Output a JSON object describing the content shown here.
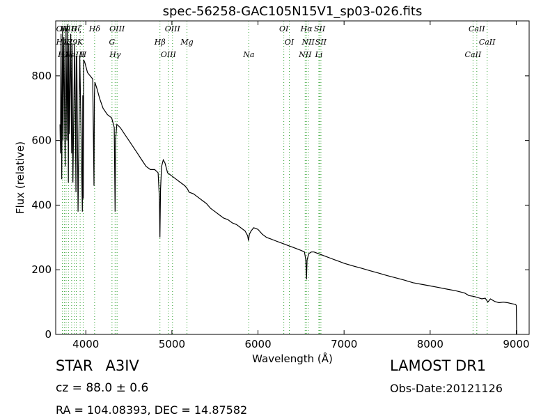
{
  "chart_data": {
    "type": "line",
    "title": "spec-56258-GAC105N15V1_sp03-026.fits",
    "xlabel": "Wavelength (Å)",
    "ylabel": "Flux (relative)",
    "xlim": [
      3650,
      9150
    ],
    "ylim": [
      0,
      970
    ],
    "x_ticks": [
      4000,
      5000,
      6000,
      7000,
      8000,
      9000
    ],
    "y_ticks": [
      0,
      200,
      400,
      600,
      800
    ],
    "grid": false,
    "line_color": "#000000",
    "marker_color": "#2ca02c",
    "series": [
      {
        "x": [
          3700,
          3705,
          3712,
          3720,
          3730,
          3735,
          3745,
          3760,
          3770,
          3780,
          3790,
          3797,
          3802,
          3810,
          3825,
          3835,
          3840,
          3850,
          3870,
          3885,
          3889,
          3895,
          3910,
          3930,
          3960,
          3965,
          3970,
          3975,
          3990,
          4020,
          4050,
          4080,
          4095,
          4100,
          4105,
          4130,
          4160,
          4200,
          4250,
          4300,
          4330,
          4340,
          4345,
          4360,
          4400,
          4450,
          4500,
          4550,
          4600,
          4650,
          4700,
          4750,
          4800,
          4840,
          4855,
          4861,
          4868,
          4880,
          4900,
          4920,
          4950,
          5000,
          5050,
          5100,
          5150,
          5180,
          5200,
          5250,
          5300,
          5350,
          5400,
          5450,
          5500,
          5550,
          5600,
          5650,
          5700,
          5750,
          5800,
          5850,
          5880,
          5890,
          5900,
          5920,
          5950,
          6000,
          6050,
          6100,
          6150,
          6200,
          6250,
          6300,
          6350,
          6400,
          6450,
          6500,
          6540,
          6555,
          6563,
          6570,
          6590,
          6620,
          6650,
          6700,
          6750,
          6800,
          6850,
          6900,
          6950,
          7000,
          7100,
          7200,
          7300,
          7400,
          7500,
          7600,
          7700,
          7800,
          7900,
          8000,
          8100,
          8200,
          8300,
          8400,
          8450,
          8500,
          8540,
          8600,
          8640,
          8670,
          8700,
          8750,
          8800,
          8850,
          8900,
          8950,
          8990,
          9000,
          9005
        ],
        "y": [
          650,
          560,
          930,
          480,
          950,
          600,
          920,
          520,
          950,
          600,
          960,
          470,
          900,
          620,
          930,
          560,
          900,
          470,
          900,
          440,
          860,
          860,
          380,
          860,
          380,
          740,
          420,
          850,
          840,
          810,
          800,
          790,
          460,
          740,
          780,
          760,
          730,
          700,
          680,
          670,
          640,
          380,
          600,
          650,
          640,
          620,
          600,
          580,
          560,
          540,
          520,
          510,
          510,
          500,
          420,
          300,
          450,
          520,
          540,
          530,
          500,
          490,
          480,
          470,
          460,
          450,
          440,
          435,
          425,
          415,
          405,
          390,
          380,
          370,
          360,
          355,
          345,
          340,
          330,
          320,
          305,
          290,
          310,
          320,
          330,
          325,
          310,
          300,
          295,
          290,
          285,
          280,
          275,
          270,
          265,
          260,
          255,
          230,
          170,
          230,
          250,
          255,
          255,
          250,
          245,
          240,
          235,
          230,
          225,
          220,
          212,
          205,
          197,
          190,
          182,
          175,
          168,
          160,
          155,
          150,
          145,
          140,
          135,
          128,
          120,
          118,
          115,
          110,
          112,
          100,
          110,
          102,
          98,
          100,
          98,
          95,
          93,
          90,
          0
        ]
      }
    ],
    "lines": [
      {
        "x": 3727,
        "label": "OII"
      },
      {
        "x": 3750,
        "label": "H12"
      },
      {
        "x": 3771,
        "label": "H11"
      },
      {
        "x": 3798,
        "label": "H10"
      },
      {
        "x": 3835,
        "label": "H9"
      },
      {
        "x": 3869,
        "label": "NeIII"
      },
      {
        "x": 3889,
        "label": "Hζ"
      },
      {
        "x": 3934,
        "label": "K"
      },
      {
        "x": 3969,
        "label": "H"
      },
      {
        "x": 4102,
        "label": "Hδ"
      },
      {
        "x": 4304,
        "label": "G"
      },
      {
        "x": 4340,
        "label": "Hγ"
      },
      {
        "x": 4363,
        "label": "OIII"
      },
      {
        "x": 4861,
        "label": "Hβ"
      },
      {
        "x": 4959,
        "label": "OIII"
      },
      {
        "x": 5007,
        "label": "OIII"
      },
      {
        "x": 5175,
        "label": "Mg"
      },
      {
        "x": 5893,
        "label": "Na"
      },
      {
        "x": 6300,
        "label": "OI"
      },
      {
        "x": 6364,
        "label": "OI"
      },
      {
        "x": 6548,
        "label": "NII"
      },
      {
        "x": 6563,
        "label": "Hα"
      },
      {
        "x": 6583,
        "label": "NII"
      },
      {
        "x": 6707,
        "label": "Li"
      },
      {
        "x": 6716,
        "label": "SII"
      },
      {
        "x": 6731,
        "label": "SII"
      },
      {
        "x": 8498,
        "label": "CaII"
      },
      {
        "x": 8542,
        "label": "CaII"
      },
      {
        "x": 8662,
        "label": "CaII"
      }
    ]
  },
  "info": {
    "class_label": "STAR",
    "subclass": "A3IV",
    "survey": "LAMOST DR1",
    "cz_text": "cz = 88.0 ± 0.6",
    "obs_date": "Obs-Date:20121126",
    "coords": "RA = 104.08393, DEC = 14.87582"
  }
}
